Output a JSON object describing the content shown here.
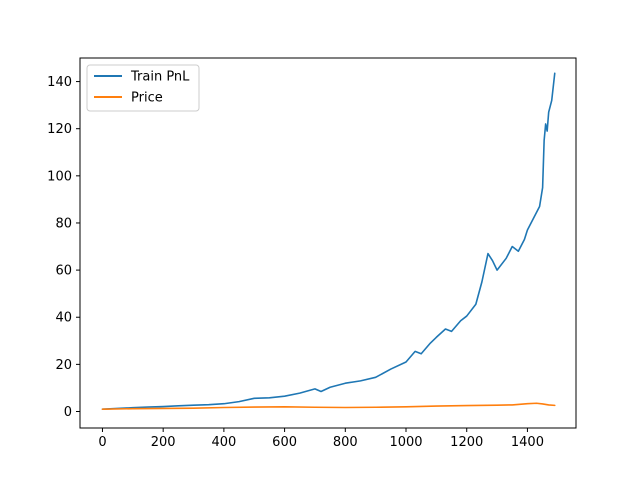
{
  "chart_data": {
    "type": "line",
    "title": "",
    "xlabel": "",
    "ylabel": "",
    "xlim": [
      -74,
      1560
    ],
    "ylim": [
      -7,
      150
    ],
    "x_ticks": [
      0,
      200,
      400,
      600,
      800,
      1000,
      1200,
      1400
    ],
    "y_ticks": [
      0,
      20,
      40,
      60,
      80,
      100,
      120,
      140
    ],
    "grid": false,
    "legend_position": "upper-left",
    "series": [
      {
        "name": "Train PnL",
        "color": "#1f77b4",
        "x": [
          0,
          50,
          100,
          150,
          200,
          250,
          300,
          350,
          400,
          450,
          500,
          550,
          600,
          650,
          700,
          720,
          750,
          800,
          850,
          900,
          950,
          1000,
          1030,
          1050,
          1080,
          1100,
          1130,
          1150,
          1180,
          1200,
          1230,
          1250,
          1270,
          1285,
          1300,
          1330,
          1350,
          1370,
          1390,
          1400,
          1420,
          1440,
          1450,
          1455,
          1460,
          1465,
          1470,
          1480,
          1490
        ],
        "values": [
          1,
          1.3,
          1.6,
          1.9,
          2.1,
          2.4,
          2.7,
          2.9,
          3.3,
          4.2,
          5.6,
          5.8,
          6.5,
          7.8,
          9.6,
          8.5,
          10.3,
          12.0,
          13.0,
          14.5,
          18.0,
          21.0,
          25.5,
          24.5,
          29.0,
          31.5,
          35.0,
          34.0,
          38.5,
          40.5,
          45.5,
          55.0,
          67.0,
          64.0,
          60.0,
          65.0,
          70.0,
          68.0,
          73.0,
          77.0,
          82.0,
          87.0,
          95.0,
          115.0,
          122.0,
          119.0,
          127.0,
          132.0,
          143.5
        ]
      },
      {
        "name": "Price",
        "color": "#ff7f0e",
        "x": [
          0,
          100,
          200,
          300,
          400,
          500,
          600,
          700,
          800,
          900,
          1000,
          1100,
          1200,
          1300,
          1350,
          1400,
          1430,
          1450,
          1470,
          1490
        ],
        "values": [
          1.0,
          1.2,
          1.3,
          1.4,
          1.7,
          1.9,
          2.0,
          1.8,
          1.7,
          1.8,
          2.0,
          2.3,
          2.5,
          2.7,
          2.8,
          3.3,
          3.5,
          3.2,
          2.8,
          2.6
        ]
      }
    ]
  }
}
